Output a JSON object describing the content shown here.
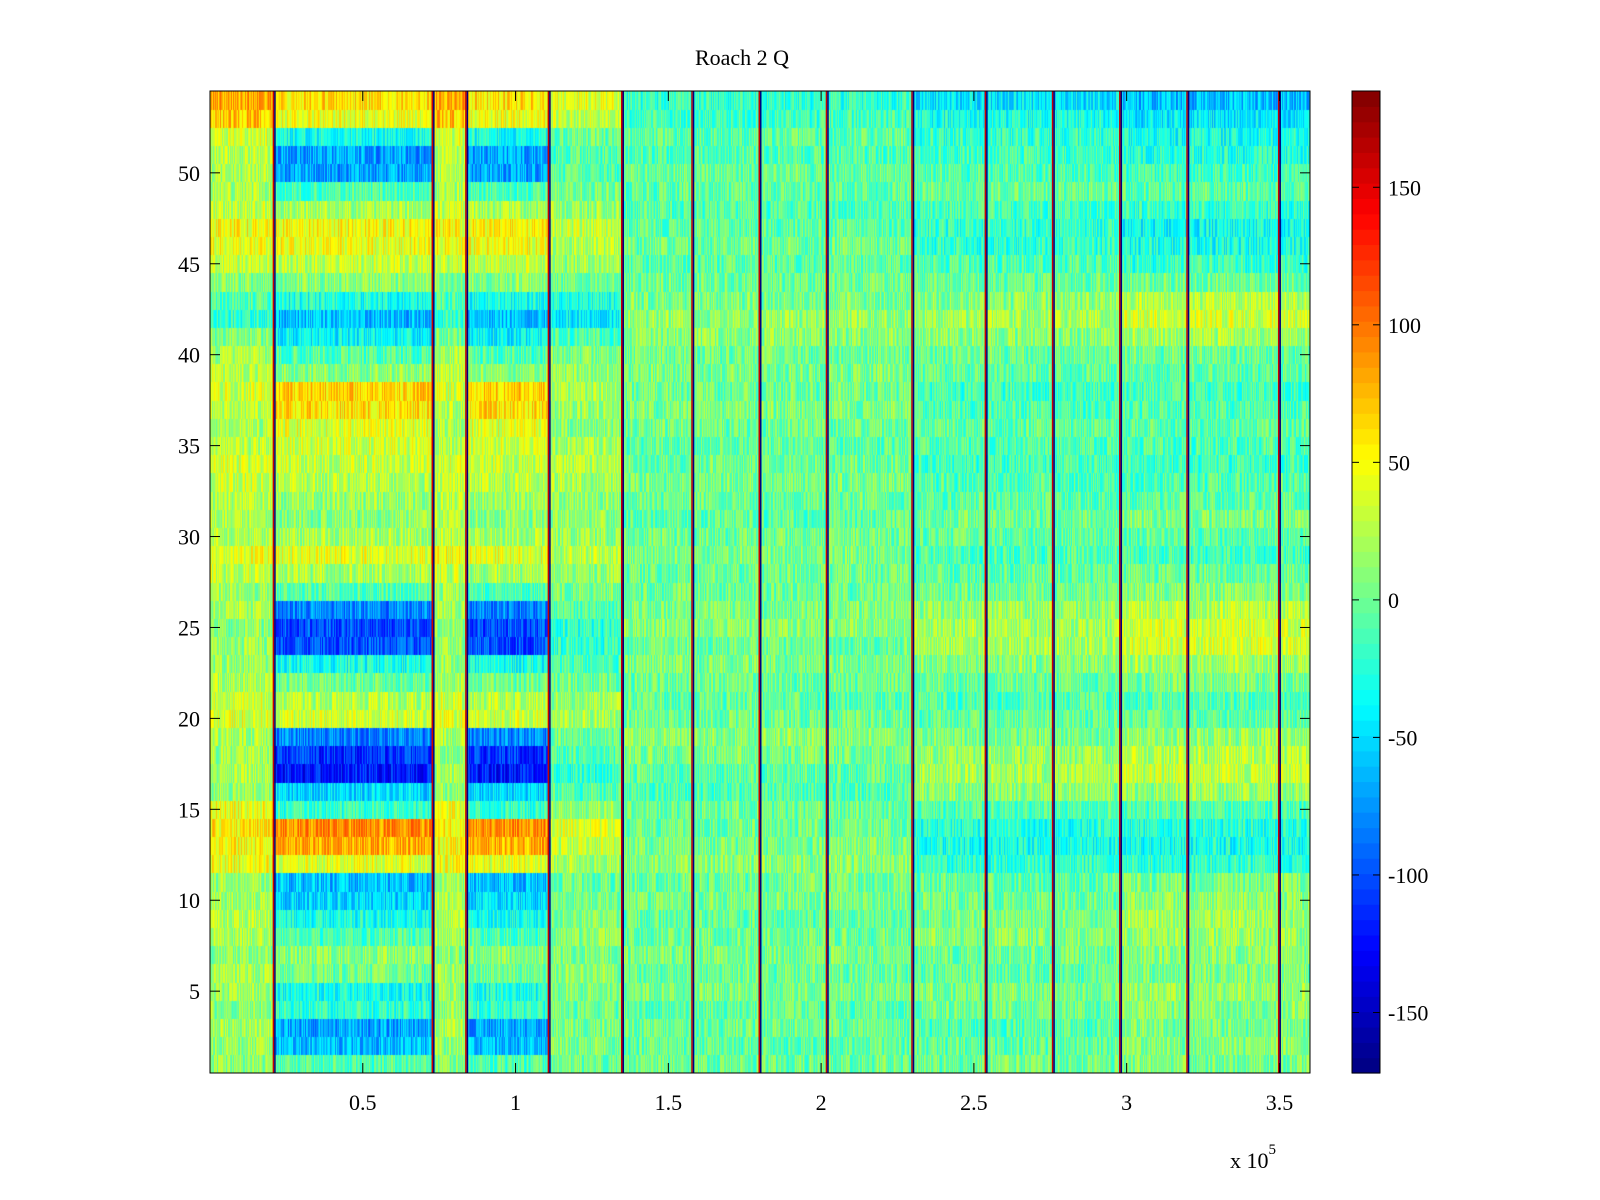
{
  "chart_data": {
    "type": "heatmap",
    "title": "Roach 2 Q",
    "xlabel": "",
    "ylabel": "",
    "x_exponent_label": "x 10",
    "x_exponent_power": "5",
    "xlim": [
      0,
      360000
    ],
    "ylim": [
      0.5,
      54.5
    ],
    "n_rows": 54,
    "x_ticks": [
      {
        "value": 50000,
        "label": "0.5"
      },
      {
        "value": 100000,
        "label": "1"
      },
      {
        "value": 150000,
        "label": "1.5"
      },
      {
        "value": 200000,
        "label": "2"
      },
      {
        "value": 250000,
        "label": "2.5"
      },
      {
        "value": 300000,
        "label": "3"
      },
      {
        "value": 350000,
        "label": "3.5"
      }
    ],
    "y_ticks": [
      {
        "value": 5,
        "label": "5"
      },
      {
        "value": 10,
        "label": "10"
      },
      {
        "value": 15,
        "label": "15"
      },
      {
        "value": 20,
        "label": "20"
      },
      {
        "value": 25,
        "label": "25"
      },
      {
        "value": 30,
        "label": "30"
      },
      {
        "value": 35,
        "label": "35"
      },
      {
        "value": 40,
        "label": "40"
      },
      {
        "value": 45,
        "label": "45"
      },
      {
        "value": 50,
        "label": "50"
      }
    ],
    "colorbar": {
      "colormap": "jet",
      "range": [
        -172,
        185
      ],
      "ticks": [
        {
          "value": 150,
          "label": "150"
        },
        {
          "value": 100,
          "label": "100"
        },
        {
          "value": 50,
          "label": "50"
        },
        {
          "value": 0,
          "label": "0"
        },
        {
          "value": -50,
          "label": "-50"
        },
        {
          "value": -100,
          "label": "-100"
        },
        {
          "value": -150,
          "label": "-150"
        }
      ]
    },
    "segment_boundaries": [
      21000,
      73000,
      84000,
      111000,
      135000,
      158000,
      180000,
      202000,
      230000,
      254000,
      276000,
      298000,
      320000,
      350000
    ],
    "segments": [
      {
        "x_start": 0,
        "x_end": 21000,
        "profile": "A"
      },
      {
        "x_start": 21000,
        "x_end": 73000,
        "profile": "B"
      },
      {
        "x_start": 73000,
        "x_end": 84000,
        "profile": "A"
      },
      {
        "x_start": 84000,
        "x_end": 111000,
        "profile": "B"
      },
      {
        "x_start": 111000,
        "x_end": 135000,
        "profile": "C"
      },
      {
        "x_start": 135000,
        "x_end": 158000,
        "profile": "D"
      },
      {
        "x_start": 158000,
        "x_end": 180000,
        "profile": "D"
      },
      {
        "x_start": 180000,
        "x_end": 202000,
        "profile": "D"
      },
      {
        "x_start": 202000,
        "x_end": 230000,
        "profile": "D"
      },
      {
        "x_start": 230000,
        "x_end": 254000,
        "profile": "E"
      },
      {
        "x_start": 254000,
        "x_end": 276000,
        "profile": "E"
      },
      {
        "x_start": 276000,
        "x_end": 298000,
        "profile": "E"
      },
      {
        "x_start": 298000,
        "x_end": 320000,
        "profile": "F"
      },
      {
        "x_start": 320000,
        "x_end": 350000,
        "profile": "F"
      },
      {
        "x_start": 350000,
        "x_end": 360000,
        "profile": "F"
      }
    ],
    "row_profiles": {
      "A": [
        10,
        15,
        20,
        10,
        15,
        20,
        10,
        20,
        25,
        20,
        15,
        45,
        50,
        55,
        45,
        15,
        20,
        15,
        20,
        40,
        35,
        20,
        15,
        15,
        10,
        20,
        15,
        30,
        45,
        25,
        20,
        25,
        30,
        35,
        25,
        20,
        25,
        35,
        30,
        20,
        5,
        -20,
        -10,
        10,
        30,
        45,
        50,
        30,
        20,
        20,
        25,
        35,
        70,
        80
      ],
      "B": [
        -10,
        -60,
        -70,
        -20,
        -30,
        0,
        10,
        -10,
        -30,
        -50,
        -60,
        40,
        80,
        90,
        -20,
        -50,
        -120,
        -110,
        -80,
        35,
        25,
        0,
        -30,
        -100,
        -100,
        -80,
        -10,
        20,
        40,
        20,
        10,
        15,
        25,
        30,
        35,
        40,
        60,
        65,
        10,
        -10,
        -40,
        -60,
        -30,
        10,
        30,
        45,
        50,
        20,
        -10,
        -70,
        -70,
        -30,
        45,
        60
      ],
      "C": [
        0,
        5,
        5,
        0,
        5,
        10,
        5,
        10,
        10,
        5,
        0,
        20,
        30,
        35,
        15,
        -10,
        -20,
        -10,
        0,
        20,
        15,
        0,
        -10,
        -20,
        -20,
        -10,
        5,
        15,
        25,
        15,
        10,
        15,
        20,
        25,
        20,
        10,
        15,
        20,
        15,
        5,
        -10,
        -40,
        -25,
        0,
        15,
        25,
        30,
        15,
        5,
        -10,
        -10,
        0,
        30,
        40
      ],
      "D": [
        0,
        -5,
        0,
        -5,
        5,
        0,
        5,
        0,
        -5,
        5,
        0,
        10,
        5,
        0,
        0,
        -10,
        -5,
        5,
        10,
        0,
        -5,
        0,
        5,
        0,
        10,
        5,
        0,
        0,
        5,
        0,
        -5,
        0,
        5,
        0,
        -5,
        0,
        5,
        0,
        5,
        0,
        10,
        15,
        5,
        0,
        -5,
        0,
        -5,
        -10,
        -5,
        0,
        -10,
        -5,
        -15,
        -20
      ],
      "E": [
        0,
        -5,
        -10,
        0,
        5,
        -5,
        0,
        10,
        5,
        0,
        -5,
        -20,
        -30,
        -25,
        -10,
        10,
        20,
        15,
        5,
        -5,
        -10,
        0,
        10,
        20,
        20,
        15,
        0,
        -5,
        -10,
        -5,
        0,
        -5,
        -10,
        -15,
        -10,
        -5,
        -10,
        -15,
        -5,
        0,
        10,
        20,
        10,
        0,
        -10,
        -20,
        -20,
        -15,
        0,
        -10,
        -15,
        -20,
        -30,
        -45
      ],
      "F": [
        5,
        10,
        5,
        10,
        15,
        5,
        10,
        15,
        20,
        10,
        5,
        -20,
        -30,
        -25,
        -10,
        15,
        30,
        25,
        15,
        -5,
        -10,
        5,
        20,
        35,
        35,
        25,
        10,
        0,
        -15,
        -5,
        5,
        -5,
        -10,
        -15,
        -10,
        -5,
        -10,
        -15,
        -5,
        0,
        20,
        35,
        25,
        0,
        -20,
        -30,
        -35,
        -20,
        -5,
        -15,
        -25,
        -30,
        -45,
        -60
      ]
    },
    "boundary_stripe_value": 160,
    "noise_amplitude": 28,
    "legend": "colorbar-right",
    "grid": false
  }
}
